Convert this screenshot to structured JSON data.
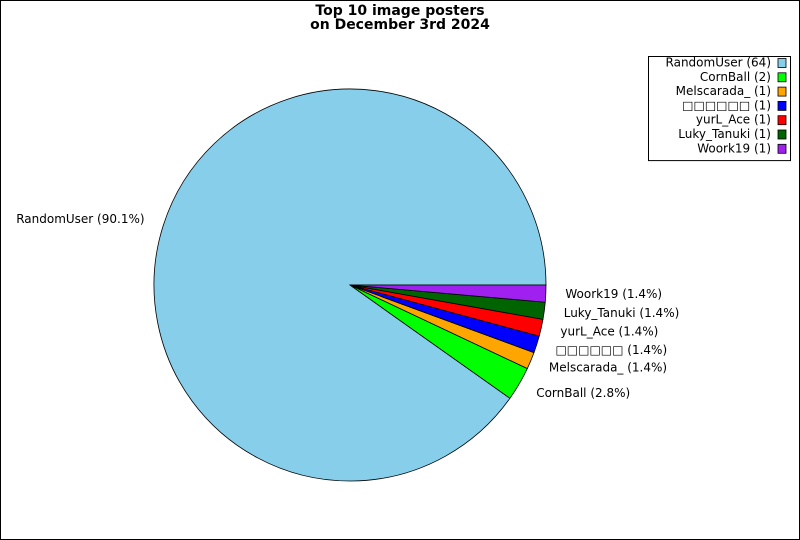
{
  "chart_data": {
    "type": "pie",
    "title": "Top 10 image posters",
    "subtitle": "on December 3rd 2024",
    "values": [
      90.1,
      2.8,
      1.4,
      1.4,
      1.4,
      1.4,
      1.4
    ],
    "value_labels": [
      "RandomUser (90.1%)",
      "CornBall (2.8%)",
      "Melscarada_ (1.4%)",
      "□□□□□□ (1.4%)",
      "yurL_Ace (1.4%)",
      "Luky_Tanuki (1.4%)",
      "Woork19 (1.4%)"
    ],
    "legend": [
      "RandomUser (64)",
      "CornBall (2)",
      "Melscarada_ (1)",
      "□□□□□□ (1)",
      "yurL_Ace (1)",
      "Luky_Tanuki (1)",
      "Woork19 (1)"
    ],
    "colors": [
      "#87ceeb",
      "#00ff00",
      "#ffa500",
      "#0000ff",
      "#ff0000",
      "#006400",
      "#a020f0"
    ],
    "legend_position": "upper right"
  }
}
